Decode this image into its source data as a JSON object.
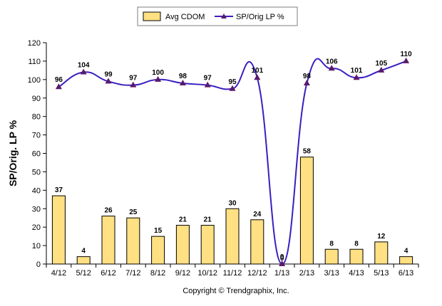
{
  "chart_data": {
    "type": "bar",
    "categories": [
      "4/12",
      "5/12",
      "6/12",
      "7/12",
      "8/12",
      "9/12",
      "10/12",
      "11/12",
      "12/12",
      "1/13",
      "2/13",
      "3/13",
      "4/13",
      "5/13",
      "6/13"
    ],
    "series": [
      {
        "name": "Avg CDOM",
        "type": "bar",
        "color": "#ffe082",
        "stroke": "#000000",
        "values": [
          37,
          4,
          26,
          25,
          15,
          21,
          21,
          30,
          24,
          0,
          58,
          8,
          8,
          12,
          4
        ]
      },
      {
        "name": "SP/Orig LP %",
        "type": "line",
        "color": "#3a1fc1",
        "marker_color": "#5a1a6a",
        "values": [
          96,
          104,
          99,
          97,
          100,
          98,
          97,
          95,
          101,
          0,
          98,
          106,
          101,
          105,
          110
        ]
      }
    ],
    "ylabel": "SP/Orig. LP %",
    "xlabel": "",
    "ylim": [
      0,
      120
    ],
    "yticks": [
      0,
      10,
      20,
      30,
      40,
      50,
      60,
      70,
      80,
      90,
      100,
      110,
      120
    ],
    "grid": false,
    "legend_position": "top-center",
    "line_smoothing": "spline"
  },
  "footer": {
    "copyright": "Copyright © Trendgraphix, Inc."
  }
}
